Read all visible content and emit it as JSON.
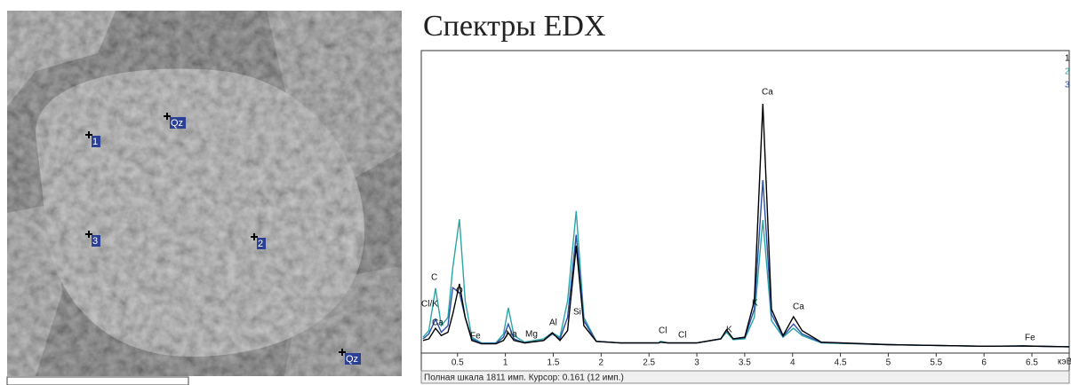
{
  "image": {
    "markers": [
      "1",
      "Qz",
      "3",
      "2",
      "Qz"
    ]
  },
  "chart_data": {
    "type": "line",
    "title": "Спектры EDX",
    "x": [
      0.14,
      0.2,
      0.27,
      0.33,
      0.4,
      0.45,
      0.52,
      0.58,
      0.65,
      0.75,
      0.9,
      0.98,
      1.03,
      1.09,
      1.2,
      1.4,
      1.49,
      1.57,
      1.65,
      1.74,
      1.82,
      1.95,
      2.2,
      2.6,
      2.62,
      2.7,
      3.0,
      3.25,
      3.31,
      3.38,
      3.5,
      3.6,
      3.69,
      3.78,
      3.9,
      4.01,
      4.1,
      4.3,
      5.0,
      6.0,
      6.4,
      6.89
    ],
    "series": [
      {
        "name": "1",
        "color": "#000000",
        "values": [
          60,
          70,
          134,
          90,
          110,
          220,
          403,
          200,
          60,
          40,
          40,
          60,
          107,
          60,
          45,
          60,
          107,
          60,
          120,
          634,
          150,
          55,
          45,
          45,
          50,
          45,
          45,
          70,
          124,
          70,
          80,
          300,
          1494,
          250,
          90,
          204,
          120,
          50,
          35,
          25,
          27,
          22
        ]
      },
      {
        "name": "2",
        "color": "#2aa5a5",
        "values": [
          80,
          120,
          376,
          150,
          200,
          500,
          795,
          300,
          80,
          45,
          45,
          100,
          258,
          90,
          50,
          70,
          107,
          80,
          300,
          844,
          200,
          55,
          45,
          45,
          55,
          45,
          45,
          70,
          110,
          65,
          70,
          200,
          790,
          180,
          80,
          134,
          90,
          45,
          35,
          25,
          27,
          22
        ]
      },
      {
        "name": "3",
        "color": "#2a4fa8",
        "values": [
          70,
          100,
          188,
          110,
          150,
          380,
          350,
          200,
          70,
          42,
          42,
          80,
          160,
          70,
          45,
          60,
          100,
          70,
          200,
          700,
          180,
          55,
          45,
          45,
          50,
          45,
          45,
          70,
          124,
          70,
          75,
          250,
          1032,
          220,
          85,
          160,
          100,
          48,
          35,
          25,
          27,
          22
        ]
      }
    ],
    "annotations": [
      "C",
      "Cl/K",
      "Ca",
      "O",
      "Fe",
      "Na",
      "Mg",
      "Al",
      "Si",
      "Cl",
      "Cl",
      "K",
      "K",
      "Ca",
      "Ca",
      "Fe"
    ],
    "xlim": [
      0.14,
      6.89
    ],
    "ylim": [
      0,
      1811
    ],
    "xticks": [
      0.5,
      1,
      1.5,
      2,
      2.5,
      3,
      3.5,
      4,
      4.5,
      5,
      5.5,
      6,
      6.5
    ],
    "xlabel": "кэВ",
    "status": "Полная шкала 1811 имп. Курсор: 0.161  (12 имп.)"
  }
}
